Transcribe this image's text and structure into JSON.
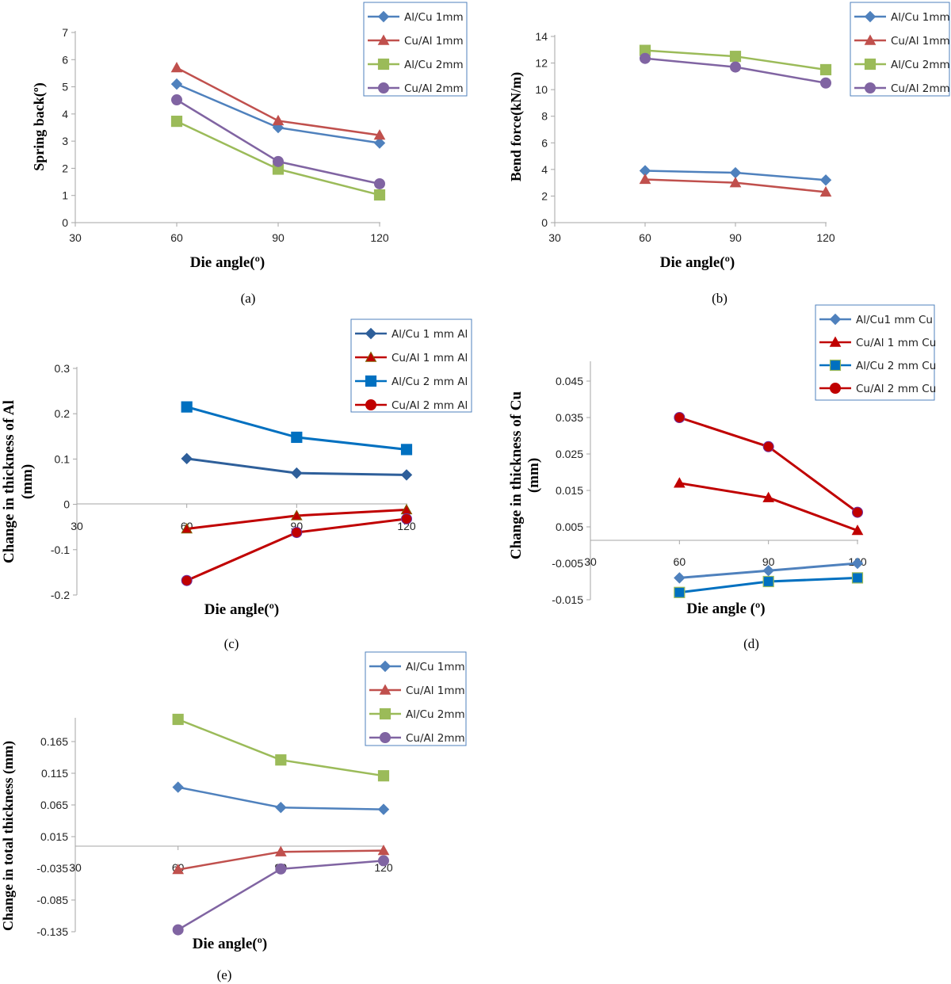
{
  "chart_data": [
    {
      "id": "a",
      "type": "line",
      "caption": "(a)",
      "xlabel": "Die angle(º)",
      "ylabel": "Spring back(º)",
      "x_ticks": [
        "30",
        "60",
        "90",
        "120"
      ],
      "y_ticks": [
        "0",
        "1",
        "2",
        "3",
        "4",
        "5",
        "6",
        "7"
      ],
      "xlim": [
        30,
        120
      ],
      "ylim": [
        0,
        7
      ],
      "legend_position": "top-right",
      "series": [
        {
          "name": "Al/Cu 1mm",
          "color": "#4f81bd",
          "marker": "diamond",
          "x": [
            60,
            90,
            120
          ],
          "y": [
            5.1,
            3.5,
            2.93
          ]
        },
        {
          "name": "Cu/Al 1mm",
          "color": "#c0504d",
          "marker": "triangle",
          "x": [
            60,
            90,
            120
          ],
          "y": [
            5.7,
            3.75,
            3.22
          ]
        },
        {
          "name": "Al/Cu 2mm",
          "color": "#9bbb59",
          "marker": "square",
          "x": [
            60,
            90,
            120
          ],
          "y": [
            3.73,
            1.97,
            1.02
          ]
        },
        {
          "name": "Cu/Al 2mm",
          "color": "#8064a2",
          "marker": "circle",
          "x": [
            60,
            90,
            120
          ],
          "y": [
            4.52,
            2.25,
            1.43
          ]
        }
      ]
    },
    {
      "id": "b",
      "type": "line",
      "caption": "(b)",
      "xlabel": "Die angle(º)",
      "ylabel": "Bend force(kN/m)",
      "x_ticks": [
        "30",
        "60",
        "90",
        "120"
      ],
      "y_ticks": [
        "0",
        "2",
        "4",
        "6",
        "8",
        "10",
        "12",
        "14"
      ],
      "xlim": [
        30,
        120
      ],
      "ylim": [
        0,
        14
      ],
      "legend_position": "top-right",
      "series": [
        {
          "name": "Al/Cu 1mm",
          "color": "#4f81bd",
          "marker": "diamond",
          "x": [
            60,
            90,
            120
          ],
          "y": [
            3.9,
            3.75,
            3.2
          ]
        },
        {
          "name": "Cu/Al 1mm",
          "color": "#c0504d",
          "marker": "triangle",
          "x": [
            60,
            90,
            120
          ],
          "y": [
            3.25,
            3.0,
            2.3
          ]
        },
        {
          "name": "Al/Cu 2mm",
          "color": "#9bbb59",
          "marker": "square",
          "x": [
            60,
            90,
            120
          ],
          "y": [
            12.95,
            12.5,
            11.5
          ]
        },
        {
          "name": "Cu/Al 2mm",
          "color": "#8064a2",
          "marker": "circle",
          "x": [
            60,
            90,
            120
          ],
          "y": [
            12.35,
            11.7,
            10.5
          ]
        }
      ]
    },
    {
      "id": "c",
      "type": "line",
      "caption": "(c)",
      "xlabel": "Die angle(º)",
      "ylabel_lines": [
        "Change in thickness of Al",
        "(mm)"
      ],
      "x_ticks": [
        "30",
        "60",
        "90",
        "120"
      ],
      "y_ticks": [
        "-0.2",
        "-0.1",
        "0",
        "0.1",
        "0.2",
        "0.3"
      ],
      "xlim": [
        30,
        120
      ],
      "ylim": [
        -0.2,
        0.3
      ],
      "legend_position": "top-right",
      "series": [
        {
          "name": "Al/Cu 1 mm Al",
          "color": "#2e5f9a",
          "marker": "diamond",
          "x": [
            60,
            90,
            120
          ],
          "y": [
            0.101,
            0.069,
            0.065
          ]
        },
        {
          "name": "Cu/Al 1 mm Al",
          "color": "#c00000",
          "marker": "triangle",
          "x": [
            60,
            90,
            120
          ],
          "y": [
            -0.054,
            -0.025,
            -0.012
          ]
        },
        {
          "name": "Al/Cu 2 mm Al",
          "color": "#0070c0",
          "marker": "square",
          "x": [
            60,
            90,
            120
          ],
          "y": [
            0.215,
            0.148,
            0.121
          ]
        },
        {
          "name": "Cu/Al 2 mm Al",
          "color": "#c00000",
          "marker": "circle",
          "x": [
            60,
            90,
            120
          ],
          "y": [
            -0.168,
            -0.062,
            -0.032
          ]
        }
      ]
    },
    {
      "id": "d",
      "type": "line",
      "caption": "(d)",
      "xlabel": "Die angle (º)",
      "ylabel_lines": [
        "Change in thickness of  Cu",
        "(mm)"
      ],
      "x_ticks": [
        "30",
        "60",
        "90",
        "120"
      ],
      "y_ticks": [
        "-0.015",
        "-0.005",
        "0.005",
        "0.015",
        "0.025",
        "0.035",
        "0.045"
      ],
      "xlim": [
        30,
        120
      ],
      "ylim": [
        -0.015,
        0.05
      ],
      "legend_position": "top-right",
      "series": [
        {
          "name": "Al/Cu1 mm Cu",
          "color": "#4f81bd",
          "marker": "diamond",
          "x": [
            60,
            90,
            120
          ],
          "y": [
            -0.009,
            -0.007,
            -0.005
          ]
        },
        {
          "name": "Cu/Al 1 mm Cu",
          "color": "#c00000",
          "marker": "triangle",
          "x": [
            60,
            90,
            120
          ],
          "y": [
            0.017,
            0.013,
            0.004
          ]
        },
        {
          "name": "Al/Cu 2 mm Cu",
          "color": "#0070c0",
          "marker": "square",
          "x": [
            60,
            90,
            120
          ],
          "y": [
            -0.013,
            -0.01,
            -0.009
          ]
        },
        {
          "name": "Cu/Al 2 mm Cu",
          "color": "#c00000",
          "marker": "circle",
          "x": [
            60,
            90,
            120
          ],
          "y": [
            0.035,
            0.027,
            0.009
          ]
        }
      ]
    },
    {
      "id": "e",
      "type": "line",
      "caption": "(e)",
      "xlabel": "Die angle(º)",
      "ylabel": "Change in total  thickness (mm)",
      "x_ticks": [
        "30",
        "60",
        "90",
        "120"
      ],
      "y_ticks": [
        "-0.135",
        "-0.085",
        "-0.035",
        "0.015",
        "0.065",
        "0.115",
        "0.165"
      ],
      "xlim": [
        30,
        120
      ],
      "ylim": [
        -0.135,
        0.2
      ],
      "legend_position": "top-right",
      "series": [
        {
          "name": "Al/Cu 1mm",
          "color": "#4f81bd",
          "marker": "diamond",
          "x": [
            60,
            90,
            120
          ],
          "y": [
            0.093,
            0.061,
            0.058
          ]
        },
        {
          "name": "Cu/Al 1mm",
          "color": "#c0504d",
          "marker": "triangle",
          "x": [
            60,
            90,
            120
          ],
          "y": [
            -0.037,
            -0.009,
            -0.007
          ]
        },
        {
          "name": "Al/Cu 2mm",
          "color": "#9bbb59",
          "marker": "square",
          "x": [
            60,
            90,
            120
          ],
          "y": [
            0.2,
            0.136,
            0.111
          ]
        },
        {
          "name": "Cu/Al  2mm",
          "color": "#8064a2",
          "marker": "circle",
          "x": [
            60,
            90,
            120
          ],
          "y": [
            -0.132,
            -0.036,
            -0.023
          ]
        }
      ]
    }
  ]
}
